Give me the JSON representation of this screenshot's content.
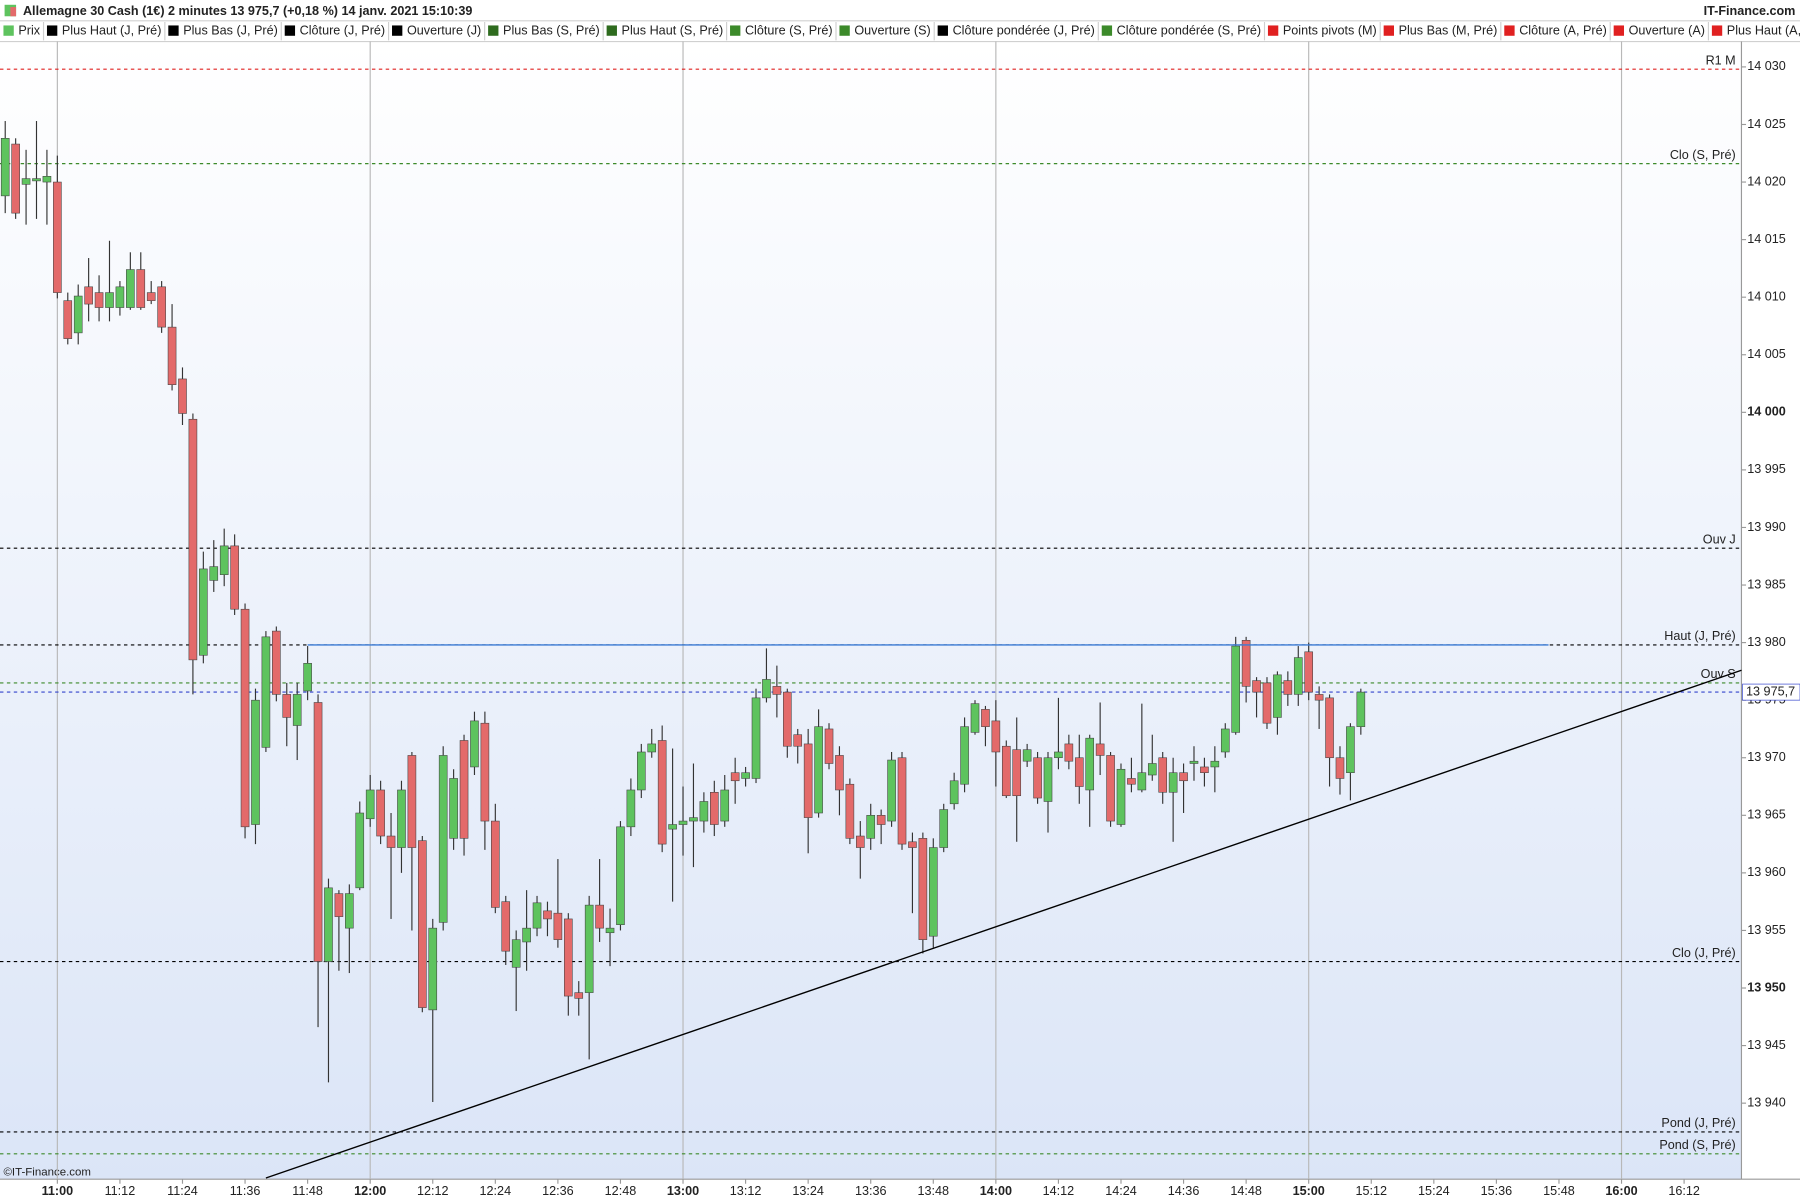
{
  "chart_data": {
    "type": "candlestick",
    "title": "Allemagne 30 Cash (1€) 2 minutes 13 975,7 (+0,18 %) 14 janv. 2021 15:10:39",
    "brand": "IT-Finance.com",
    "copyright": "©IT-Finance.com",
    "up_color": "#5ec35e",
    "down_color": "#e36a6a",
    "legend": [
      {
        "name": "Prix",
        "color": "#5ec35e"
      },
      {
        "name": "Plus Haut (J, Pré)",
        "color": "#000000"
      },
      {
        "name": "Plus Bas (J, Pré)",
        "color": "#000000"
      },
      {
        "name": "Clôture (J, Pré)",
        "color": "#000000"
      },
      {
        "name": "Ouverture (J)",
        "color": "#000000"
      },
      {
        "name": "Plus Bas (S, Pré)",
        "color": "#2e6b1e"
      },
      {
        "name": "Plus Haut (S, Pré)",
        "color": "#2e6b1e"
      },
      {
        "name": "Clôture (S, Pré)",
        "color": "#3c8a2a"
      },
      {
        "name": "Ouverture (S)",
        "color": "#3c8a2a"
      },
      {
        "name": "Clôture pondérée (J, Pré)",
        "color": "#000000"
      },
      {
        "name": "Clôture pondérée (S, Pré)",
        "color": "#3c8a2a"
      },
      {
        "name": "Points pivots (M)",
        "color": "#e02020"
      },
      {
        "name": "Plus Bas (M, Pré)",
        "color": "#e02020"
      },
      {
        "name": "Clôture (A, Pré)",
        "color": "#e02020"
      },
      {
        "name": "Ouverture (A)",
        "color": "#e02020"
      },
      {
        "name": "Plus Haut (A, Pr",
        "color": "#e02020"
      }
    ],
    "xlim": [
      "10:49",
      "16:23"
    ],
    "ylim": [
      13933.4,
      14034.0
    ],
    "yticks": [
      {
        "value": 13940,
        "label": "13 940"
      },
      {
        "value": 13945,
        "label": "13 945"
      },
      {
        "value": 13950,
        "label": "13 950"
      },
      {
        "value": 13955,
        "label": "13 955"
      },
      {
        "value": 13960,
        "label": "13 960"
      },
      {
        "value": 13965,
        "label": "13 965"
      },
      {
        "value": 13970,
        "label": "13 970"
      },
      {
        "value": 13975,
        "label": "13 975"
      },
      {
        "value": 13980,
        "label": "13 980"
      },
      {
        "value": 13985,
        "label": "13 985"
      },
      {
        "value": 13990,
        "label": "13 990"
      },
      {
        "value": 13995,
        "label": "13 995"
      },
      {
        "value": 14000,
        "label": "14 000"
      },
      {
        "value": 14005,
        "label": "14 005"
      },
      {
        "value": 14010,
        "label": "14 010"
      },
      {
        "value": 14015,
        "label": "14 015"
      },
      {
        "value": 14020,
        "label": "14 020"
      },
      {
        "value": 14025,
        "label": "14 025"
      },
      {
        "value": 14030,
        "label": "14 030"
      }
    ],
    "xticks": [
      "11:00",
      "11:12",
      "11:24",
      "11:36",
      "11:48",
      "12:00",
      "12:12",
      "12:24",
      "12:36",
      "12:48",
      "13:00",
      "13:12",
      "13:24",
      "13:36",
      "13:48",
      "14:00",
      "14:12",
      "14:24",
      "14:36",
      "14:48",
      "15:00",
      "15:12",
      "15:24",
      "15:36",
      "15:48",
      "16:00",
      "16:12"
    ],
    "levels": [
      {
        "label": "R1 M",
        "value": 14029.8,
        "color": "#e02020"
      },
      {
        "label": "Clo (S, Pré)",
        "value": 14021.6,
        "color": "#3c8a2a"
      },
      {
        "label": "Ouv J",
        "value": 13988.2,
        "color": "#000000"
      },
      {
        "label": "Haut (J, Pré)",
        "value": 13979.8,
        "color": "#000000"
      },
      {
        "label": "Ouv S",
        "value": 13976.5,
        "color": "#3c8a2a"
      },
      {
        "label": "Clo (J, Pré)",
        "value": 13952.3,
        "color": "#000000"
      },
      {
        "label": "Pond (J, Pré)",
        "value": 13937.5,
        "color": "#000000"
      },
      {
        "label": "Pond (S, Pré)",
        "value": 13935.6,
        "color": "#3c8a2a"
      }
    ],
    "last_price": {
      "value": 13975.7,
      "label": "13 975,7",
      "color": "#3344cc"
    },
    "trendlines": [
      {
        "color": "#3a7bd5",
        "x": [
          "11:48",
          "15:46"
        ],
        "y": [
          13979.8,
          13979.8
        ]
      },
      {
        "color": "#000000",
        "x": [
          "11:40",
          "16:23"
        ],
        "y": [
          13933.5,
          13977.6
        ]
      }
    ],
    "x": [
      "10:50",
      "10:52",
      "10:54",
      "10:56",
      "10:58",
      "11:00",
      "11:02",
      "11:04",
      "11:06",
      "11:08",
      "11:10",
      "11:12",
      "11:14",
      "11:16",
      "11:18",
      "11:20",
      "11:22",
      "11:24",
      "11:26",
      "11:28",
      "11:30",
      "11:32",
      "11:34",
      "11:36",
      "11:38",
      "11:40",
      "11:42",
      "11:44",
      "11:46",
      "11:48",
      "11:50",
      "11:52",
      "11:54",
      "11:56",
      "11:58",
      "12:00",
      "12:02",
      "12:04",
      "12:06",
      "12:08",
      "12:10",
      "12:12",
      "12:14",
      "12:16",
      "12:18",
      "12:20",
      "12:22",
      "12:24",
      "12:26",
      "12:28",
      "12:30",
      "12:32",
      "12:34",
      "12:36",
      "12:38",
      "12:40",
      "12:42",
      "12:44",
      "12:46",
      "12:48",
      "12:50",
      "12:52",
      "12:54",
      "12:56",
      "12:58",
      "13:00",
      "13:02",
      "13:04",
      "13:06",
      "13:08",
      "13:10",
      "13:12",
      "13:14",
      "13:16",
      "13:18",
      "13:20",
      "13:22",
      "13:24",
      "13:26",
      "13:28",
      "13:30",
      "13:32",
      "13:34",
      "13:36",
      "13:38",
      "13:40",
      "13:42",
      "13:44",
      "13:46",
      "13:48",
      "13:50",
      "13:52",
      "13:54",
      "13:56",
      "13:58",
      "14:00",
      "14:02",
      "14:04",
      "14:06",
      "14:08",
      "14:10",
      "14:12",
      "14:14",
      "14:16",
      "14:18",
      "14:20",
      "14:22",
      "14:24",
      "14:26",
      "14:28",
      "14:30",
      "14:32",
      "14:34",
      "14:36",
      "14:38",
      "14:40",
      "14:42",
      "14:44",
      "14:46",
      "14:48",
      "14:50",
      "14:52",
      "14:54",
      "14:56",
      "14:58",
      "15:00",
      "15:02",
      "15:04",
      "15:06",
      "15:08",
      "15:10"
    ],
    "ohlc": [
      [
        14018.8,
        14025.3,
        14017.3,
        14023.8
      ],
      [
        14023.3,
        14023.8,
        14016.8,
        14017.3
      ],
      [
        14019.8,
        14022.8,
        14016.3,
        14020.3
      ],
      [
        14020.1,
        14025.3,
        14016.8,
        14020.3
      ],
      [
        14020.0,
        14022.8,
        14016.3,
        14020.5
      ],
      [
        14020.0,
        14022.3,
        14009.9,
        14010.4
      ],
      [
        14009.7,
        14010.4,
        14005.9,
        14006.4
      ],
      [
        14006.9,
        14011.1,
        14005.9,
        14010.1
      ],
      [
        14010.9,
        14013.4,
        14007.9,
        14009.4
      ],
      [
        14010.4,
        14011.9,
        14007.9,
        14009.1
      ],
      [
        14009.1,
        14014.9,
        14007.9,
        14010.4
      ],
      [
        14009.1,
        14011.4,
        14008.4,
        14010.9
      ],
      [
        14009.1,
        14013.9,
        14008.9,
        14012.4
      ],
      [
        14012.4,
        14013.9,
        14008.9,
        14009.1
      ],
      [
        14010.4,
        14011.4,
        14009.4,
        14009.7
      ],
      [
        14010.9,
        14011.4,
        14006.9,
        14007.4
      ],
      [
        14007.4,
        14009.4,
        14001.9,
        14002.4
      ],
      [
        14002.9,
        14003.9,
        13998.9,
        13999.9
      ],
      [
        13999.4,
        13999.9,
        13975.5,
        13978.5
      ],
      [
        13978.9,
        13987.9,
        13978.2,
        13986.4
      ],
      [
        13985.4,
        13988.9,
        13984.4,
        13986.6
      ],
      [
        13985.9,
        13989.9,
        13984.9,
        13988.4
      ],
      [
        13988.4,
        13989.4,
        13982.4,
        13982.9
      ],
      [
        13982.9,
        13983.4,
        13963.0,
        13964.0
      ],
      [
        13964.2,
        13976.0,
        13962.5,
        13975.0
      ],
      [
        13970.9,
        13981.0,
        13970.5,
        13980.5
      ],
      [
        13981.0,
        13981.4,
        13974.9,
        13975.5
      ],
      [
        13975.5,
        13976.5,
        13971.0,
        13973.5
      ],
      [
        13972.8,
        13976.5,
        13969.8,
        13975.5
      ],
      [
        13975.8,
        13979.7,
        13975.0,
        13978.2
      ],
      [
        13974.8,
        13975.5,
        13946.6,
        13952.3
      ],
      [
        13952.3,
        13959.5,
        13941.8,
        13958.7
      ],
      [
        13958.2,
        13958.5,
        13951.5,
        13956.2
      ],
      [
        13955.2,
        13959.0,
        13951.3,
        13958.2
      ],
      [
        13958.7,
        13966.2,
        13958.5,
        13965.2
      ],
      [
        13964.7,
        13968.5,
        13964.0,
        13967.2
      ],
      [
        13967.2,
        13968.0,
        13962.5,
        13963.2
      ],
      [
        13963.2,
        13965.2,
        13956.0,
        13962.2
      ],
      [
        13962.2,
        13968.0,
        13960.0,
        13967.2
      ],
      [
        13970.2,
        13970.5,
        13955.0,
        13962.2
      ],
      [
        13962.8,
        13963.2,
        13947.9,
        13948.3
      ],
      [
        13948.1,
        13956.0,
        13940.1,
        13955.2
      ],
      [
        13955.7,
        13971.0,
        13955.0,
        13970.2
      ],
      [
        13963.0,
        13969.0,
        13962.0,
        13968.2
      ],
      [
        13971.5,
        13972.0,
        13961.5,
        13963.0
      ],
      [
        13969.2,
        13974.0,
        13968.5,
        13973.2
      ],
      [
        13973.0,
        13974.0,
        13962.0,
        13964.5
      ],
      [
        13964.5,
        13966.0,
        13956.5,
        13957.0
      ],
      [
        13957.5,
        13958.0,
        13952.0,
        13953.2
      ],
      [
        13951.8,
        13955.0,
        13948.0,
        13954.2
      ],
      [
        13954.0,
        13958.5,
        13951.5,
        13955.2
      ],
      [
        13955.2,
        13958.0,
        13954.5,
        13957.4
      ],
      [
        13956.7,
        13957.5,
        13954.5,
        13956.0
      ],
      [
        13956.5,
        13961.2,
        13953.5,
        13954.2
      ],
      [
        13956.0,
        13956.5,
        13947.6,
        13949.3
      ],
      [
        13949.6,
        13950.6,
        13947.6,
        13949.1
      ],
      [
        13949.6,
        13958.0,
        13943.8,
        13957.2
      ],
      [
        13957.2,
        13961.2,
        13954.0,
        13955.2
      ],
      [
        13954.8,
        13956.9,
        13951.9,
        13955.2
      ],
      [
        13955.5,
        13964.5,
        13955.0,
        13964.0
      ],
      [
        13964.0,
        13968.2,
        13963.2,
        13967.2
      ],
      [
        13967.2,
        13971.2,
        13966.5,
        13970.5
      ],
      [
        13970.5,
        13972.5,
        13970.0,
        13971.2
      ],
      [
        13971.5,
        13972.8,
        13961.8,
        13962.5
      ],
      [
        13963.8,
        13970.8,
        13957.5,
        13964.2
      ],
      [
        13964.2,
        13967.5,
        13961.5,
        13964.5
      ],
      [
        13964.5,
        13969.5,
        13960.5,
        13964.8
      ],
      [
        13964.5,
        13967.0,
        13963.5,
        13966.2
      ],
      [
        13967.0,
        13968.0,
        13963.2,
        13964.2
      ],
      [
        13964.5,
        13968.5,
        13964.0,
        13967.2
      ],
      [
        13968.7,
        13970.0,
        13966.0,
        13968.0
      ],
      [
        13968.2,
        13969.2,
        13967.5,
        13968.7
      ],
      [
        13968.2,
        13976.0,
        13967.8,
        13975.2
      ],
      [
        13975.2,
        13979.5,
        13974.8,
        13976.8
      ],
      [
        13976.2,
        13978.0,
        13973.5,
        13975.5
      ],
      [
        13975.7,
        13976.0,
        13970.0,
        13971.0
      ],
      [
        13972.0,
        13972.5,
        13969.5,
        13971.0
      ],
      [
        13971.2,
        13972.5,
        13961.7,
        13964.8
      ],
      [
        13965.2,
        13974.2,
        13964.8,
        13972.7
      ],
      [
        13972.5,
        13973.0,
        13969.0,
        13969.5
      ],
      [
        13970.2,
        13971.0,
        13965.0,
        13967.2
      ],
      [
        13967.7,
        13968.2,
        13962.5,
        13963.0
      ],
      [
        13963.2,
        13964.5,
        13959.5,
        13962.2
      ],
      [
        13963.0,
        13966.0,
        13962.0,
        13965.0
      ],
      [
        13965.0,
        13965.5,
        13962.5,
        13964.2
      ],
      [
        13964.5,
        13970.5,
        13964.0,
        13969.8
      ],
      [
        13970.0,
        13970.5,
        13962.0,
        13962.5
      ],
      [
        13962.7,
        13963.5,
        13956.5,
        13962.2
      ],
      [
        13963.0,
        13963.5,
        13953.0,
        13954.2
      ],
      [
        13954.5,
        13963.0,
        13953.5,
        13962.2
      ],
      [
        13962.2,
        13966.0,
        13961.8,
        13965.5
      ],
      [
        13966.0,
        13968.7,
        13965.5,
        13968.0
      ],
      [
        13967.7,
        13973.5,
        13967.0,
        13972.7
      ],
      [
        13972.2,
        13975.0,
        13972.0,
        13974.7
      ],
      [
        13974.2,
        13974.5,
        13971.0,
        13972.7
      ],
      [
        13973.2,
        13975.0,
        13967.5,
        13970.5
      ],
      [
        13971.0,
        13971.5,
        13966.5,
        13966.7
      ],
      [
        13970.7,
        13973.5,
        13962.7,
        13966.7
      ],
      [
        13969.7,
        13971.2,
        13969.2,
        13970.7
      ],
      [
        13970.0,
        13970.5,
        13966.0,
        13966.5
      ],
      [
        13966.2,
        13970.5,
        13963.5,
        13970.0
      ],
      [
        13970.0,
        13975.2,
        13969.0,
        13970.5
      ],
      [
        13971.2,
        13972.0,
        13969.0,
        13969.7
      ],
      [
        13970.0,
        13972.0,
        13966.0,
        13967.5
      ],
      [
        13967.2,
        13972.0,
        13964.0,
        13971.7
      ],
      [
        13971.2,
        13974.8,
        13968.5,
        13970.2
      ],
      [
        13970.2,
        13970.5,
        13964.0,
        13964.5
      ],
      [
        13964.2,
        13969.5,
        13964.0,
        13969.0
      ],
      [
        13968.2,
        13970.0,
        13967.0,
        13967.7
      ],
      [
        13967.2,
        13974.7,
        13967.0,
        13968.7
      ],
      [
        13968.5,
        13972.0,
        13968.0,
        13969.5
      ],
      [
        13970.0,
        13970.5,
        13966.0,
        13967.0
      ],
      [
        13967.0,
        13970.0,
        13962.7,
        13968.7
      ],
      [
        13968.7,
        13969.5,
        13965.2,
        13968.0
      ],
      [
        13969.5,
        13971.0,
        13968.0,
        13969.7
      ],
      [
        13969.2,
        13970.0,
        13967.5,
        13968.7
      ],
      [
        13969.2,
        13971.0,
        13967.0,
        13969.7
      ],
      [
        13970.5,
        13973.0,
        13970.0,
        13972.5
      ],
      [
        13972.2,
        13980.5,
        13972.0,
        13979.7
      ],
      [
        13980.2,
        13980.5,
        13974.8,
        13976.2
      ],
      [
        13976.7,
        13977.0,
        13973.5,
        13975.7
      ],
      [
        13976.5,
        13977.0,
        13972.5,
        13973.0
      ],
      [
        13973.5,
        13977.5,
        13972.0,
        13977.2
      ],
      [
        13976.7,
        13977.5,
        13974.5,
        13975.5
      ],
      [
        13975.5,
        13979.7,
        13974.5,
        13978.7
      ],
      [
        13979.2,
        13980.0,
        13975.0,
        13975.7
      ],
      [
        13975.5,
        13976.2,
        13972.5,
        13975.0
      ],
      [
        13975.2,
        13975.5,
        13967.5,
        13970.0
      ],
      [
        13970.0,
        13971.0,
        13966.8,
        13968.2
      ],
      [
        13968.7,
        13973.0,
        13966.3,
        13972.7
      ],
      [
        13972.7,
        13976.0,
        13972.0,
        13975.7
      ]
    ]
  }
}
